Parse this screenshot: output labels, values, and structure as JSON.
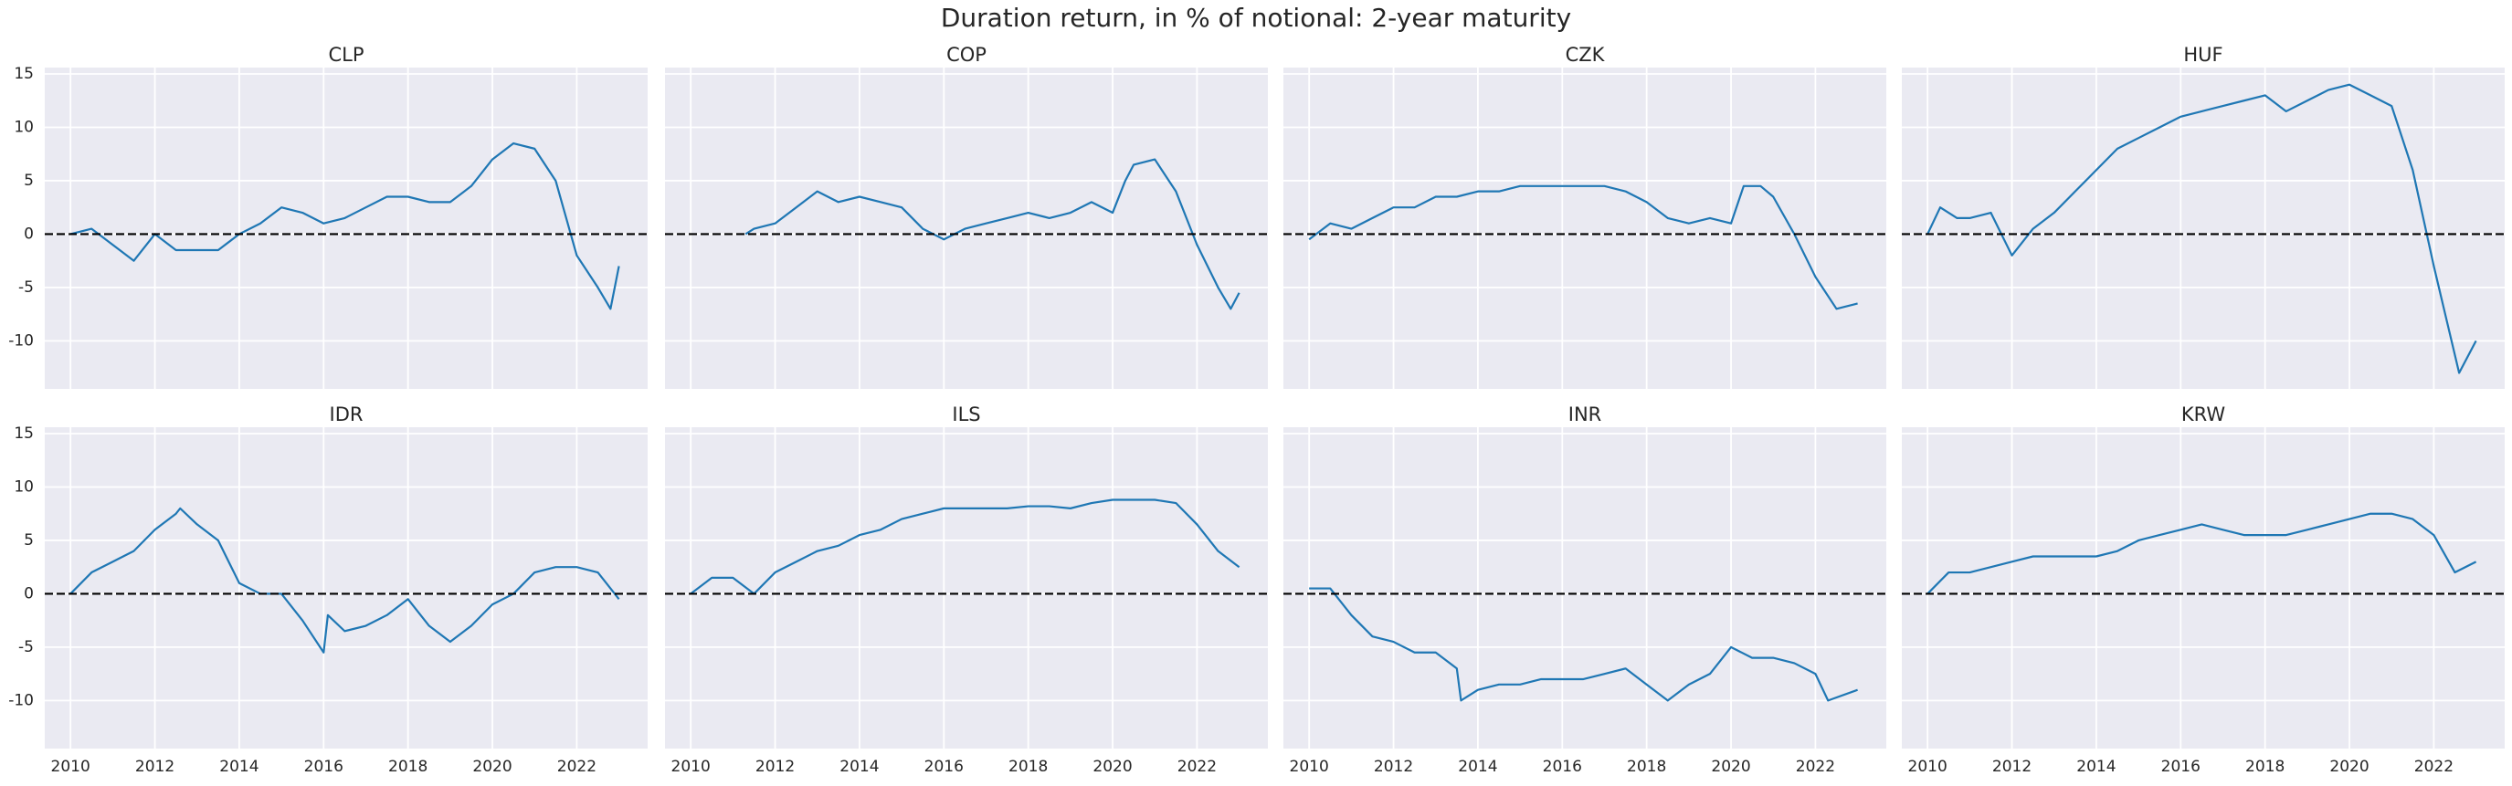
{
  "title": "Duration return, in % of notional: 2-year maturity",
  "chart_data": [
    {
      "type": "line",
      "title": "CLP",
      "color": "#1f77b4",
      "grid": true,
      "hline": 0,
      "xlim": [
        2009.39,
        2023.68
      ],
      "ylim": [
        -14.5,
        15.6
      ],
      "xticks": [
        2010,
        2012,
        2014,
        2016,
        2018,
        2020,
        2022
      ],
      "yticks": [
        -10,
        -5,
        0,
        5,
        10,
        15
      ],
      "x": [
        2010,
        2010.5,
        2011,
        2011.5,
        2012,
        2012.5,
        2013,
        2013.5,
        2014,
        2014.5,
        2015,
        2015.5,
        2016,
        2016.5,
        2017,
        2017.5,
        2018,
        2018.5,
        2019,
        2019.5,
        2020,
        2020.5,
        2021,
        2021.5,
        2022,
        2022.5,
        2022.8,
        2023
      ],
      "values": [
        0,
        0.5,
        -1,
        -2.5,
        0,
        -1.5,
        -1.5,
        -1.5,
        0,
        1,
        2.5,
        2,
        1,
        1.5,
        2.5,
        3.5,
        3.5,
        3,
        3,
        4.5,
        7,
        8.5,
        8,
        5,
        -2,
        -5,
        -7,
        -3
      ]
    },
    {
      "type": "line",
      "title": "COP",
      "color": "#1f77b4",
      "grid": true,
      "hline": 0,
      "xlim": [
        2009.39,
        2023.68
      ],
      "ylim": [
        -14.5,
        15.6
      ],
      "xticks": [
        2010,
        2012,
        2014,
        2016,
        2018,
        2020,
        2022
      ],
      "yticks": [
        -10,
        -5,
        0,
        5,
        10,
        15
      ],
      "x": [
        2011.3,
        2011.5,
        2012,
        2012.5,
        2013,
        2013.5,
        2014,
        2014.5,
        2015,
        2015.5,
        2016,
        2016.5,
        2017,
        2017.5,
        2018,
        2018.5,
        2019,
        2019.5,
        2020,
        2020.3,
        2020.5,
        2021,
        2021.5,
        2022,
        2022.5,
        2022.8,
        2023
      ],
      "values": [
        0,
        0.5,
        1,
        2.5,
        4,
        3,
        3.5,
        3,
        2.5,
        0.5,
        -0.5,
        0.5,
        1,
        1.5,
        2,
        1.5,
        2,
        3,
        2,
        5,
        6.5,
        7,
        4,
        -1,
        -5,
        -7,
        -5.5
      ]
    },
    {
      "type": "line",
      "title": "CZK",
      "color": "#1f77b4",
      "grid": true,
      "hline": 0,
      "xlim": [
        2009.39,
        2023.68
      ],
      "ylim": [
        -14.5,
        15.6
      ],
      "xticks": [
        2010,
        2012,
        2014,
        2016,
        2018,
        2020,
        2022
      ],
      "yticks": [
        -10,
        -5,
        0,
        5,
        10,
        15
      ],
      "x": [
        2010,
        2010.5,
        2011,
        2011.5,
        2012,
        2012.5,
        2013,
        2013.5,
        2014,
        2014.5,
        2015,
        2015.5,
        2016,
        2016.5,
        2017,
        2017.5,
        2018,
        2018.5,
        2019,
        2019.5,
        2020,
        2020.3,
        2020.7,
        2021,
        2021.5,
        2022,
        2022.5,
        2023
      ],
      "values": [
        -0.5,
        1,
        0.5,
        1.5,
        2.5,
        2.5,
        3.5,
        3.5,
        4,
        4,
        4.5,
        4.5,
        4.5,
        4.5,
        4.5,
        4,
        3,
        1.5,
        1,
        1.5,
        1,
        4.5,
        4.5,
        3.5,
        0,
        -4,
        -7,
        -6.5
      ]
    },
    {
      "type": "line",
      "title": "HUF",
      "color": "#1f77b4",
      "grid": true,
      "hline": 0,
      "xlim": [
        2009.39,
        2023.68
      ],
      "ylim": [
        -14.5,
        15.6
      ],
      "xticks": [
        2010,
        2012,
        2014,
        2016,
        2018,
        2020,
        2022
      ],
      "yticks": [
        -10,
        -5,
        0,
        5,
        10,
        15
      ],
      "x": [
        2010,
        2010.3,
        2010.7,
        2011,
        2011.5,
        2012,
        2012.5,
        2013,
        2013.5,
        2014,
        2014.5,
        2015,
        2015.5,
        2016,
        2016.5,
        2017,
        2017.5,
        2018,
        2018.5,
        2019,
        2019.5,
        2020,
        2020.5,
        2021,
        2021.5,
        2022,
        2022.3,
        2022.6,
        2023
      ],
      "values": [
        0,
        2.5,
        1.5,
        1.5,
        2,
        -2,
        0.5,
        2,
        4,
        6,
        8,
        9,
        10,
        11,
        11.5,
        12,
        12.5,
        13,
        11.5,
        12.5,
        13.5,
        14,
        13,
        12,
        6,
        -3,
        -8,
        -13,
        -10
      ]
    },
    {
      "type": "line",
      "title": "IDR",
      "color": "#1f77b4",
      "grid": true,
      "hline": 0,
      "xlim": [
        2009.39,
        2023.68
      ],
      "ylim": [
        -14.5,
        15.6
      ],
      "xticks": [
        2010,
        2012,
        2014,
        2016,
        2018,
        2020,
        2022
      ],
      "yticks": [
        -10,
        -5,
        0,
        5,
        10,
        15
      ],
      "x": [
        2010,
        2010.5,
        2011,
        2011.5,
        2012,
        2012.5,
        2012.6,
        2013,
        2013.5,
        2014,
        2014.5,
        2015,
        2015.5,
        2016,
        2016.1,
        2016.5,
        2017,
        2017.5,
        2018,
        2018.5,
        2019,
        2019.5,
        2020,
        2020.5,
        2021,
        2021.5,
        2022,
        2022.5,
        2023
      ],
      "values": [
        0,
        2,
        3,
        4,
        6,
        7.5,
        8,
        6.5,
        5,
        1,
        0,
        0,
        -2.5,
        -5.5,
        -2,
        -3.5,
        -3,
        -2,
        -0.5,
        -3,
        -4.5,
        -3,
        -1,
        0,
        2,
        2.5,
        2.5,
        2,
        -0.5
      ]
    },
    {
      "type": "line",
      "title": "ILS",
      "color": "#1f77b4",
      "grid": true,
      "hline": 0,
      "xlim": [
        2009.39,
        2023.68
      ],
      "ylim": [
        -14.5,
        15.6
      ],
      "xticks": [
        2010,
        2012,
        2014,
        2016,
        2018,
        2020,
        2022
      ],
      "yticks": [
        -10,
        -5,
        0,
        5,
        10,
        15
      ],
      "x": [
        2010,
        2010.5,
        2011,
        2011.5,
        2012,
        2012.5,
        2013,
        2013.5,
        2014,
        2014.5,
        2015,
        2015.5,
        2016,
        2016.5,
        2017,
        2017.5,
        2018,
        2018.5,
        2019,
        2019.5,
        2020,
        2020.5,
        2021,
        2021.5,
        2022,
        2022.5,
        2023
      ],
      "values": [
        0,
        1.5,
        1.5,
        0,
        2,
        3,
        4,
        4.5,
        5.5,
        6,
        7,
        7.5,
        8,
        8,
        8,
        8,
        8.2,
        8.2,
        8,
        8.5,
        8.8,
        8.8,
        8.8,
        8.5,
        6.5,
        4,
        2.5
      ]
    },
    {
      "type": "line",
      "title": "INR",
      "color": "#1f77b4",
      "grid": true,
      "hline": 0,
      "xlim": [
        2009.39,
        2023.68
      ],
      "ylim": [
        -14.5,
        15.6
      ],
      "xticks": [
        2010,
        2012,
        2014,
        2016,
        2018,
        2020,
        2022
      ],
      "yticks": [
        -10,
        -5,
        0,
        5,
        10,
        15
      ],
      "x": [
        2010,
        2010.5,
        2011,
        2011.5,
        2012,
        2012.5,
        2013,
        2013.5,
        2013.6,
        2014,
        2014.5,
        2015,
        2015.5,
        2016,
        2016.5,
        2017,
        2017.5,
        2018,
        2018.5,
        2019,
        2019.5,
        2020,
        2020.5,
        2021,
        2021.5,
        2022,
        2022.3,
        2023
      ],
      "values": [
        0.5,
        0.5,
        -2,
        -4,
        -4.5,
        -5.5,
        -5.5,
        -7,
        -10,
        -9,
        -8.5,
        -8.5,
        -8,
        -8,
        -8,
        -7.5,
        -7,
        -8.5,
        -10,
        -8.5,
        -7.5,
        -5,
        -6,
        -6,
        -6.5,
        -7.5,
        -10,
        -9
      ]
    },
    {
      "type": "line",
      "title": "KRW",
      "color": "#1f77b4",
      "grid": true,
      "hline": 0,
      "xlim": [
        2009.39,
        2023.68
      ],
      "ylim": [
        -14.5,
        15.6
      ],
      "xticks": [
        2010,
        2012,
        2014,
        2016,
        2018,
        2020,
        2022
      ],
      "yticks": [
        -10,
        -5,
        0,
        5,
        10,
        15
      ],
      "x": [
        2010,
        2010.5,
        2011,
        2011.5,
        2012,
        2012.5,
        2013,
        2013.5,
        2014,
        2014.5,
        2015,
        2015.5,
        2016,
        2016.5,
        2017,
        2017.5,
        2018,
        2018.5,
        2019,
        2019.5,
        2020,
        2020.5,
        2021,
        2021.5,
        2022,
        2022.5,
        2023
      ],
      "values": [
        0,
        2,
        2,
        2.5,
        3,
        3.5,
        3.5,
        3.5,
        3.5,
        4,
        5,
        5.5,
        6,
        6.5,
        6,
        5.5,
        5.5,
        5.5,
        6,
        6.5,
        7,
        7.5,
        7.5,
        7,
        5.5,
        2,
        3
      ]
    }
  ]
}
